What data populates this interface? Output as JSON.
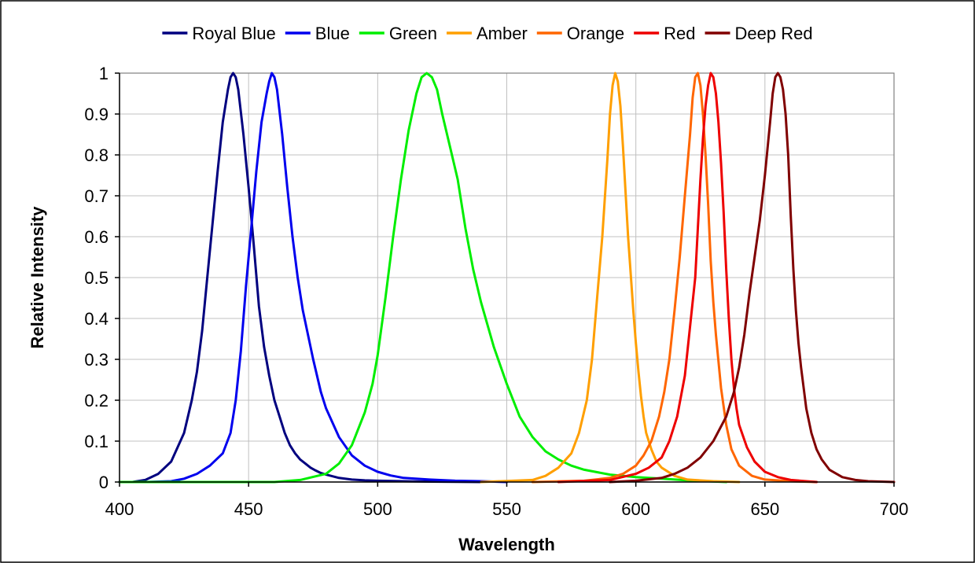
{
  "chart_data": {
    "type": "line",
    "title": "",
    "xlabel": "Wavelength",
    "ylabel": "Relative Intensity",
    "xlim": [
      400,
      700
    ],
    "ylim": [
      0,
      1
    ],
    "xticks": [
      400,
      450,
      500,
      550,
      600,
      650,
      700
    ],
    "yticks": [
      0,
      0.1,
      0.2,
      0.3,
      0.4,
      0.5,
      0.6,
      0.7,
      0.8,
      0.9,
      1
    ],
    "grid": true,
    "legend_position": "top",
    "series": [
      {
        "name": "Royal Blue",
        "color": "#00007f",
        "x": [
          400,
          405,
          410,
          415,
          420,
          425,
          428,
          430,
          432,
          434,
          436,
          438,
          440,
          442,
          443,
          444,
          445,
          446,
          448,
          450,
          452,
          454,
          456,
          458,
          460,
          462,
          464,
          466,
          468,
          470,
          472,
          474,
          476,
          478,
          480,
          485,
          490,
          495,
          500,
          510,
          520,
          540
        ],
        "y": [
          0,
          0,
          0.005,
          0.02,
          0.05,
          0.12,
          0.2,
          0.27,
          0.37,
          0.5,
          0.63,
          0.76,
          0.88,
          0.96,
          0.99,
          1.0,
          0.99,
          0.96,
          0.85,
          0.72,
          0.58,
          0.43,
          0.33,
          0.26,
          0.2,
          0.16,
          0.12,
          0.09,
          0.07,
          0.055,
          0.045,
          0.035,
          0.028,
          0.022,
          0.018,
          0.01,
          0.006,
          0.004,
          0.003,
          0.002,
          0.001,
          0
        ]
      },
      {
        "name": "Blue",
        "color": "#0000ee",
        "x": [
          400,
          410,
          420,
          425,
          430,
          435,
          440,
          443,
          445,
          447,
          449,
          451,
          453,
          455,
          457,
          458,
          459,
          460,
          461,
          463,
          465,
          467,
          469,
          471,
          473,
          475,
          478,
          480,
          485,
          490,
          495,
          500,
          505,
          510,
          520,
          530,
          540,
          550
        ],
        "y": [
          0,
          0,
          0.002,
          0.008,
          0.02,
          0.04,
          0.07,
          0.12,
          0.2,
          0.32,
          0.48,
          0.62,
          0.76,
          0.88,
          0.95,
          0.98,
          1.0,
          0.99,
          0.96,
          0.85,
          0.72,
          0.6,
          0.5,
          0.42,
          0.36,
          0.3,
          0.22,
          0.18,
          0.11,
          0.065,
          0.04,
          0.025,
          0.016,
          0.01,
          0.006,
          0.003,
          0.002,
          0
        ]
      },
      {
        "name": "Green",
        "color": "#00ee00",
        "x": [
          400,
          460,
          470,
          480,
          485,
          490,
          495,
          498,
          500,
          503,
          506,
          509,
          512,
          515,
          517,
          519,
          521,
          523,
          525,
          528,
          531,
          534,
          537,
          540,
          545,
          550,
          555,
          560,
          565,
          570,
          575,
          580,
          590,
          600,
          610,
          620,
          635
        ],
        "y": [
          0,
          0,
          0.005,
          0.02,
          0.045,
          0.09,
          0.17,
          0.24,
          0.31,
          0.45,
          0.6,
          0.74,
          0.86,
          0.95,
          0.99,
          1.0,
          0.99,
          0.96,
          0.9,
          0.82,
          0.74,
          0.62,
          0.52,
          0.44,
          0.33,
          0.24,
          0.16,
          0.11,
          0.075,
          0.055,
          0.04,
          0.03,
          0.018,
          0.012,
          0.008,
          0.004,
          0
        ]
      },
      {
        "name": "Amber",
        "color": "#ff9f00",
        "x": [
          540,
          560,
          565,
          570,
          575,
          578,
          581,
          583,
          585,
          587,
          589,
          590,
          591,
          592,
          593,
          594,
          595,
          597,
          599,
          600,
          601,
          602,
          603,
          604,
          606,
          608,
          610,
          615,
          620,
          630,
          640
        ],
        "y": [
          0,
          0.005,
          0.015,
          0.035,
          0.07,
          0.12,
          0.2,
          0.3,
          0.45,
          0.6,
          0.79,
          0.9,
          0.97,
          1.0,
          0.98,
          0.92,
          0.82,
          0.6,
          0.42,
          0.34,
          0.27,
          0.21,
          0.16,
          0.12,
          0.08,
          0.05,
          0.035,
          0.015,
          0.006,
          0.002,
          0
        ]
      },
      {
        "name": "Orange",
        "color": "#ff6600",
        "x": [
          560,
          580,
          590,
          595,
          600,
          603,
          606,
          609,
          611,
          613,
          615,
          617,
          619,
          621,
          622,
          623,
          624,
          625,
          626,
          627,
          628,
          629,
          630,
          631,
          633,
          635,
          637,
          640,
          645,
          650,
          660,
          670
        ],
        "y": [
          0,
          0.003,
          0.01,
          0.02,
          0.04,
          0.065,
          0.1,
          0.16,
          0.22,
          0.3,
          0.42,
          0.55,
          0.7,
          0.85,
          0.94,
          0.99,
          1.0,
          0.97,
          0.9,
          0.8,
          0.68,
          0.54,
          0.44,
          0.36,
          0.23,
          0.14,
          0.08,
          0.04,
          0.015,
          0.006,
          0.002,
          0
        ]
      },
      {
        "name": "Red",
        "color": "#ee0000",
        "x": [
          570,
          590,
          600,
          605,
          610,
          613,
          616,
          619,
          621,
          623,
          624,
          625,
          626,
          627,
          628,
          629,
          630,
          631,
          632,
          633,
          634,
          635,
          636,
          637,
          638,
          639,
          640,
          643,
          646,
          650,
          655,
          660,
          670
        ],
        "y": [
          0,
          0.005,
          0.02,
          0.035,
          0.06,
          0.1,
          0.16,
          0.26,
          0.38,
          0.5,
          0.62,
          0.74,
          0.84,
          0.92,
          0.97,
          1.0,
          0.99,
          0.95,
          0.88,
          0.78,
          0.66,
          0.52,
          0.4,
          0.3,
          0.23,
          0.18,
          0.14,
          0.085,
          0.05,
          0.025,
          0.012,
          0.005,
          0
        ]
      },
      {
        "name": "Deep Red",
        "color": "#800000",
        "x": [
          590,
          600,
          610,
          615,
          620,
          625,
          630,
          635,
          638,
          640,
          642,
          644,
          646,
          648,
          650,
          652,
          653,
          654,
          655,
          656,
          657,
          658,
          659,
          660,
          661,
          662,
          663,
          664,
          666,
          668,
          670,
          672,
          675,
          680,
          685,
          690,
          700
        ],
        "y": [
          0,
          0.003,
          0.01,
          0.02,
          0.035,
          0.06,
          0.1,
          0.16,
          0.22,
          0.28,
          0.36,
          0.46,
          0.55,
          0.64,
          0.75,
          0.88,
          0.95,
          0.99,
          1.0,
          0.99,
          0.96,
          0.9,
          0.8,
          0.65,
          0.52,
          0.42,
          0.34,
          0.28,
          0.18,
          0.12,
          0.08,
          0.055,
          0.03,
          0.012,
          0.005,
          0.002,
          0
        ]
      }
    ]
  }
}
